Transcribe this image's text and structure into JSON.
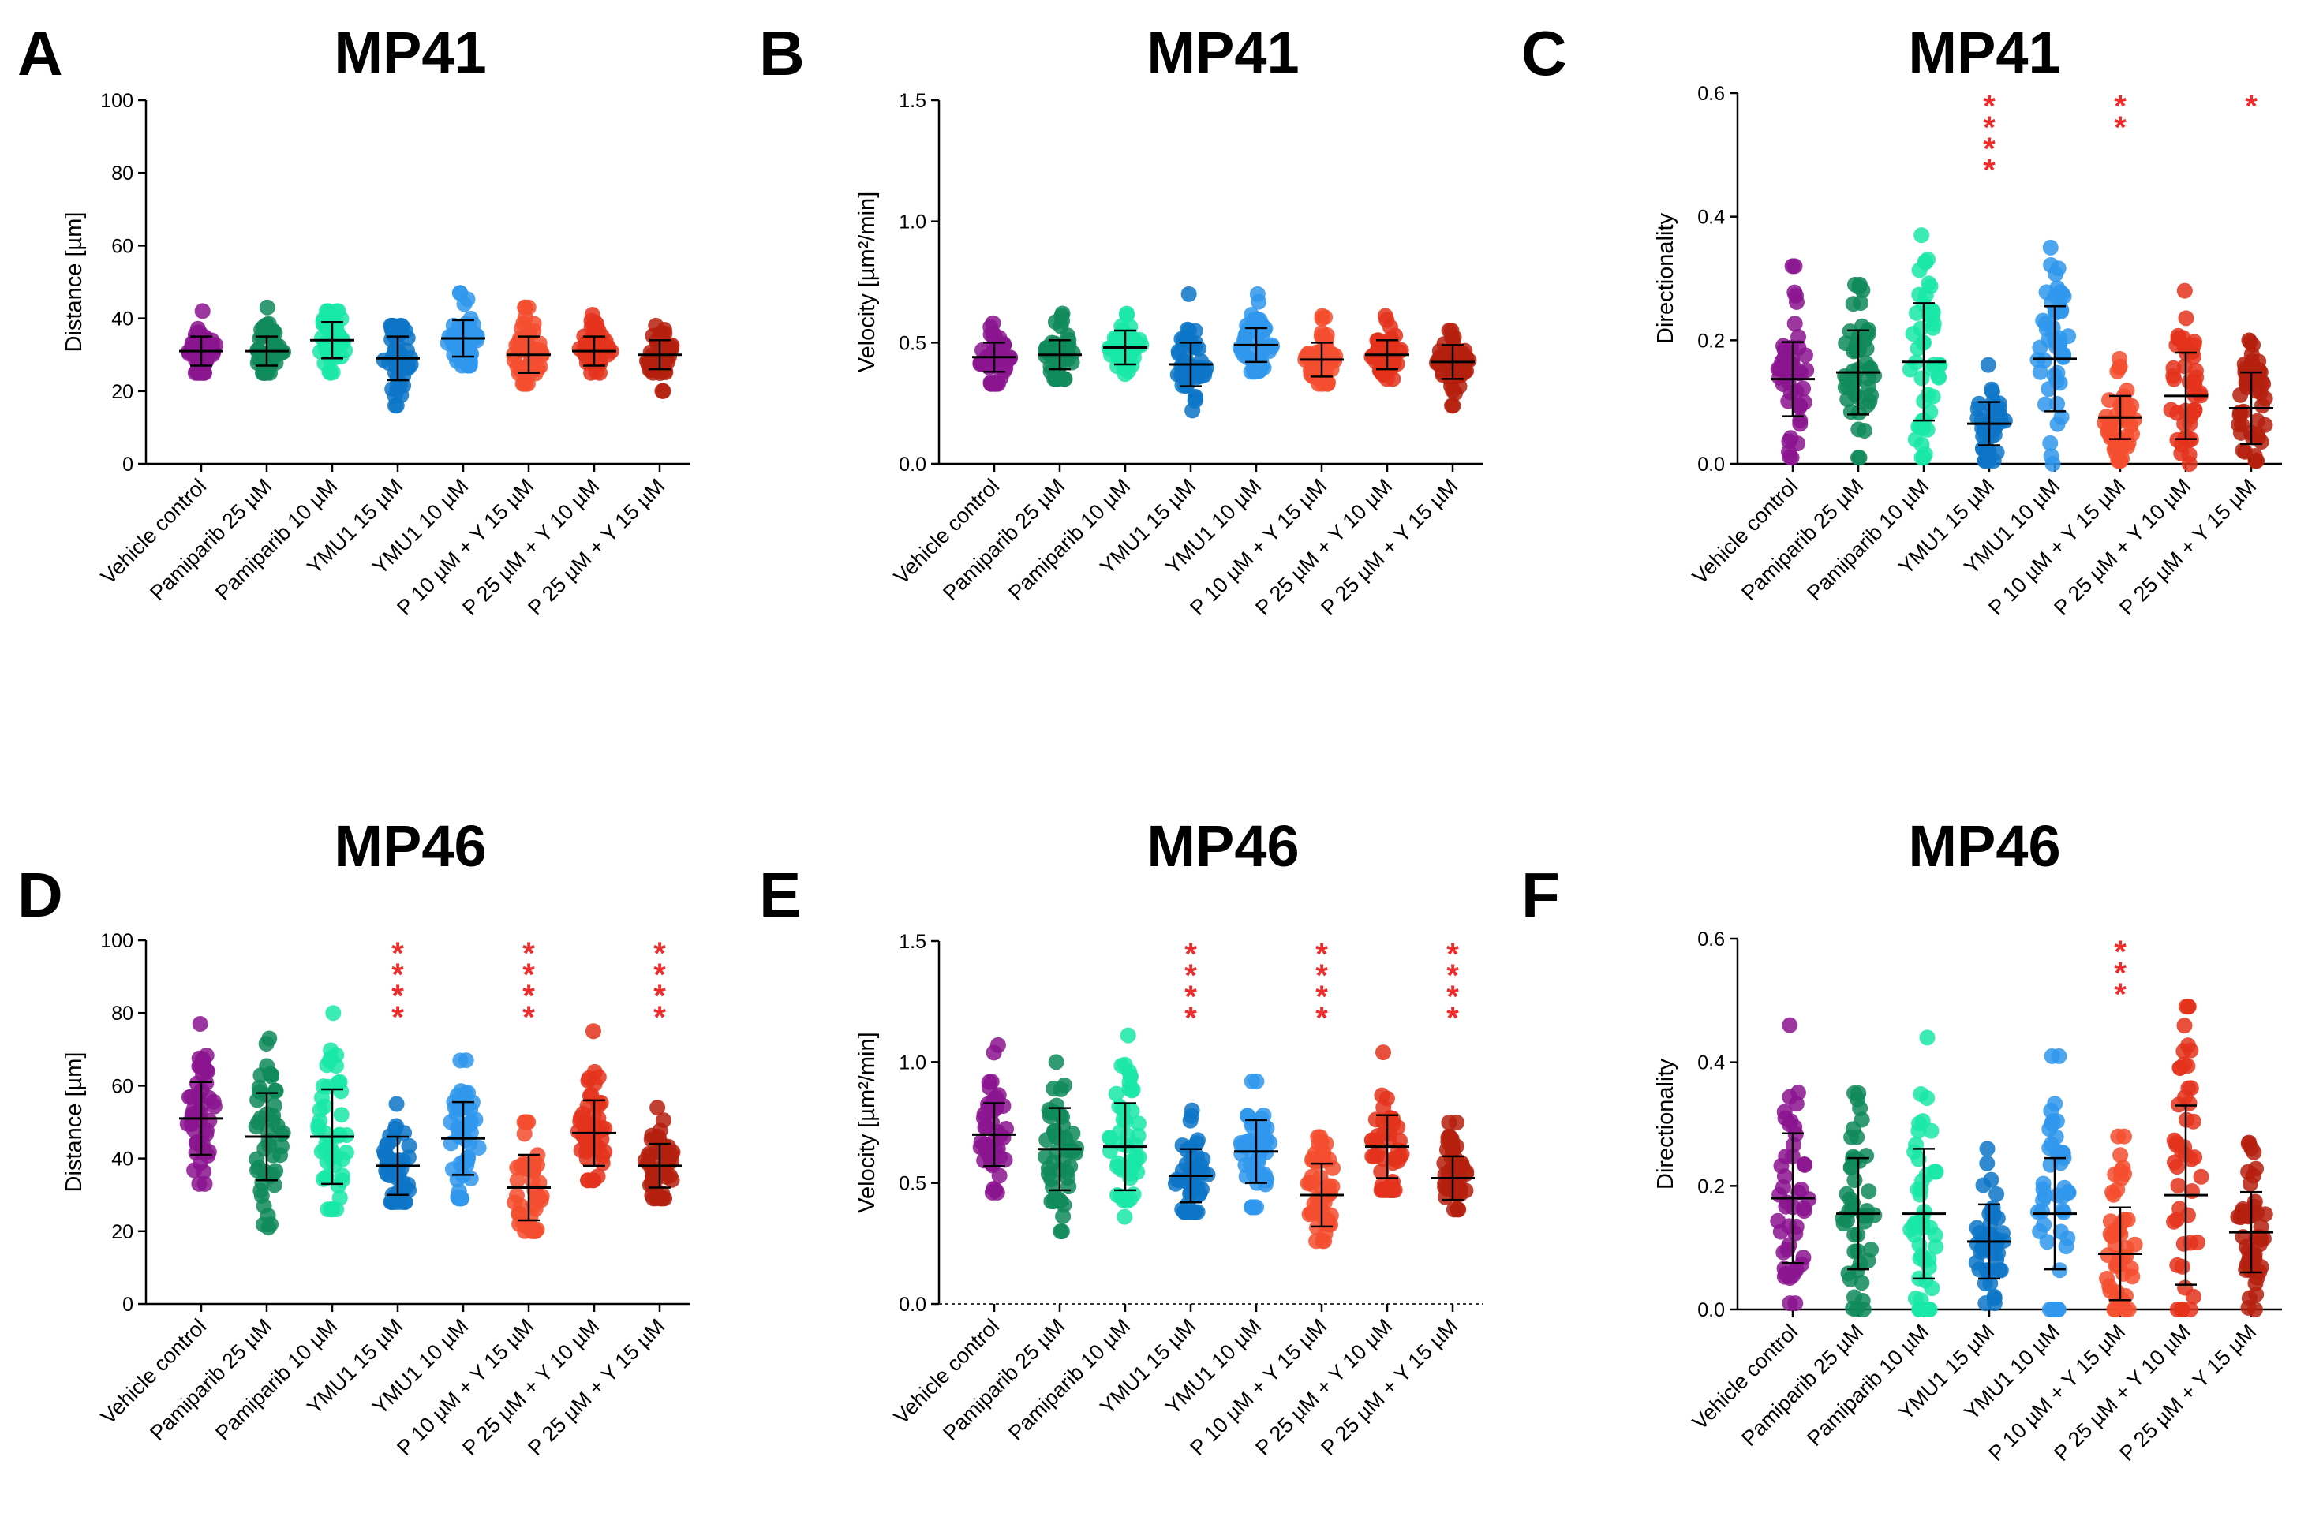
{
  "figure": {
    "categories": [
      "Vehicle control",
      "Pamiparib 25 µM",
      "Pamiparib 10 µM",
      "YMU1 15 µM",
      "YMU1 10 µM",
      "P 10 µM + Y 15 µM",
      "P 25 µM + Y 10 µM",
      "P 25 µM + Y 15 µM"
    ],
    "colors": [
      "#8b148f",
      "#0f8a5b",
      "#19e8a7",
      "#0d76c8",
      "#2f97ec",
      "#f44e2f",
      "#e4331c",
      "#b5200e"
    ]
  },
  "chart_data": [
    {
      "panel": "A",
      "title": "MP41",
      "type": "scatter",
      "ylabel": "Distance [µm]",
      "ylim": [
        0,
        100
      ],
      "yticks": [
        "0",
        "20",
        "40",
        "60",
        "80",
        "100"
      ],
      "categories": [
        "Vehicle control",
        "Pamiparib 25 µM",
        "Pamiparib 10 µM",
        "YMU1 15 µM",
        "YMU1 10 µM",
        "P 10 µM + Y 15 µM",
        "P 25 µM + Y 10 µM",
        "P 25 µM + Y 15 µM"
      ],
      "mean": [
        31,
        31,
        34,
        29,
        34.5,
        30,
        31,
        30
      ],
      "sd": [
        4,
        4,
        5,
        6,
        5,
        5,
        4,
        4
      ],
      "min": [
        25,
        25,
        25,
        16,
        27,
        22,
        25,
        20
      ],
      "max": [
        42,
        43,
        42,
        38,
        47,
        43,
        41,
        38
      ],
      "significance": [
        "",
        "",
        "",
        "",
        "",
        "",
        "",
        ""
      ],
      "dashed_baseline": false
    },
    {
      "panel": "B",
      "title": "MP41",
      "type": "scatter",
      "ylabel": "Velocity [µm²/min]",
      "ylim": [
        0,
        1.5
      ],
      "yticks": [
        "0.0",
        "0.5",
        "1.0",
        "1.5"
      ],
      "categories": [
        "Vehicle control",
        "Pamiparib 25 µM",
        "Pamiparib 10 µM",
        "YMU1 15 µM",
        "YMU1 10 µM",
        "P 10 µM + Y 15 µM",
        "P 25 µM + Y 10 µM",
        "P 25 µM + Y 15 µM"
      ],
      "mean": [
        0.44,
        0.45,
        0.48,
        0.41,
        0.49,
        0.43,
        0.45,
        0.42
      ],
      "sd": [
        0.06,
        0.06,
        0.07,
        0.09,
        0.07,
        0.07,
        0.06,
        0.07
      ],
      "min": [
        0.33,
        0.35,
        0.37,
        0.22,
        0.38,
        0.33,
        0.35,
        0.24
      ],
      "max": [
        0.58,
        0.62,
        0.62,
        0.7,
        0.7,
        0.61,
        0.61,
        0.55
      ],
      "significance": [
        "",
        "",
        "",
        "",
        "",
        "",
        "",
        ""
      ],
      "dashed_baseline": false
    },
    {
      "panel": "C",
      "title": "MP41",
      "type": "scatter",
      "ylabel": "Directionality",
      "ylim": [
        0,
        0.6
      ],
      "yticks": [
        "0.0",
        "0.2",
        "0.4",
        "0.6"
      ],
      "categories": [
        "Vehicle control",
        "Pamiparib 25 µM",
        "Pamiparib 10 µM",
        "YMU1 15 µM",
        "YMU1 10 µM",
        "P 10 µM + Y 15 µM",
        "P 25 µM + Y 10 µM",
        "P 25 µM + Y 15 µM"
      ],
      "mean": [
        0.137,
        0.148,
        0.165,
        0.065,
        0.17,
        0.075,
        0.11,
        0.09
      ],
      "sd": [
        0.06,
        0.068,
        0.095,
        0.035,
        0.085,
        0.035,
        0.07,
        0.058
      ],
      "min": [
        0.01,
        0.01,
        0.01,
        0.005,
        0.0,
        0.005,
        0.0,
        0.005
      ],
      "max": [
        0.32,
        0.29,
        0.37,
        0.16,
        0.35,
        0.17,
        0.28,
        0.2
      ],
      "significance": [
        "",
        "",
        "",
        "****",
        "",
        "**",
        "",
        "*"
      ],
      "dashed_baseline": false
    },
    {
      "panel": "D",
      "title": "MP46",
      "type": "scatter",
      "ylabel": "Distance [µm]",
      "ylim": [
        0,
        100
      ],
      "yticks": [
        "0",
        "20",
        "40",
        "60",
        "80",
        "100"
      ],
      "categories": [
        "Vehicle control",
        "Pamiparib 25 µM",
        "Pamiparib 10 µM",
        "YMU1 15 µM",
        "YMU1 10 µM",
        "P 10 µM + Y 15 µM",
        "P 25 µM + Y 10 µM",
        "P 25 µM + Y 15 µM"
      ],
      "mean": [
        51,
        46,
        46,
        38,
        45.5,
        32,
        47,
        38
      ],
      "sd": [
        10,
        12,
        13,
        8,
        10,
        9,
        9,
        6
      ],
      "min": [
        33,
        21,
        26,
        28,
        29,
        20,
        34,
        29
      ],
      "max": [
        77,
        73,
        80,
        55,
        67,
        50,
        75,
        54
      ],
      "significance": [
        "",
        "",
        "",
        "****",
        "",
        "****",
        "",
        "****"
      ],
      "dashed_baseline": false
    },
    {
      "panel": "E",
      "title": "MP46",
      "type": "scatter",
      "ylabel": "Velocity [µm²/min]",
      "ylim": [
        0,
        1.5
      ],
      "yticks": [
        "0.0",
        "0.5",
        "1.0",
        "1.5"
      ],
      "categories": [
        "Vehicle control",
        "Pamiparib 25 µM",
        "Pamiparib 10 µM",
        "YMU1 15 µM",
        "YMU1 10 µM",
        "P 10 µM + Y 15 µM",
        "P 25 µM + Y 10 µM",
        "P 25 µM + Y 15 µM"
      ],
      "mean": [
        0.7,
        0.64,
        0.65,
        0.53,
        0.63,
        0.45,
        0.65,
        0.52
      ],
      "sd": [
        0.13,
        0.17,
        0.18,
        0.11,
        0.13,
        0.13,
        0.13,
        0.09
      ],
      "min": [
        0.46,
        0.3,
        0.36,
        0.38,
        0.4,
        0.26,
        0.47,
        0.39
      ],
      "max": [
        1.07,
        1.0,
        1.11,
        0.8,
        0.92,
        0.69,
        1.04,
        0.75
      ],
      "significance": [
        "",
        "",
        "",
        "****",
        "",
        "****",
        "",
        "****"
      ],
      "dashed_baseline": true
    },
    {
      "panel": "F",
      "title": "MP46",
      "type": "scatter",
      "ylabel": "Directionality",
      "ylim": [
        0,
        0.6
      ],
      "yticks": [
        "0.0",
        "0.2",
        "0.4",
        "0.6"
      ],
      "categories": [
        "Vehicle control",
        "Pamiparib 25 µM",
        "Pamiparib 10 µM",
        "YMU1 15 µM",
        "YMU1 10 µM",
        "P 10 µM + Y 15 µM",
        "P 25 µM + Y 10 µM",
        "P 25 µM + Y 15 µM"
      ],
      "mean": [
        0.18,
        0.155,
        0.155,
        0.11,
        0.155,
        0.09,
        0.185,
        0.125
      ],
      "sd": [
        0.105,
        0.09,
        0.105,
        0.06,
        0.09,
        0.075,
        0.145,
        0.065
      ],
      "min": [
        0.01,
        0.0,
        0.0,
        0.01,
        0.0,
        0.0,
        0.0,
        0.0
      ],
      "max": [
        0.46,
        0.35,
        0.44,
        0.26,
        0.41,
        0.28,
        0.49,
        0.27
      ],
      "significance": [
        "",
        "",
        "",
        "",
        "",
        "***",
        "",
        ""
      ],
      "dashed_baseline": false
    }
  ]
}
